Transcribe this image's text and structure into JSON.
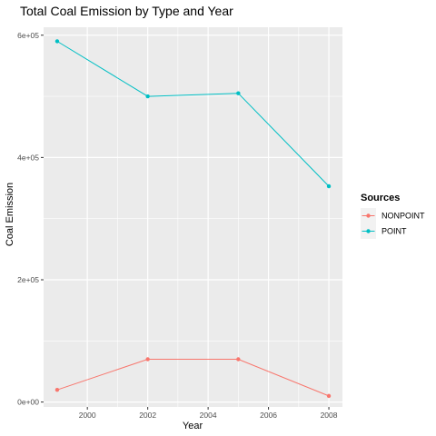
{
  "chart_data": {
    "type": "line",
    "title": "Total Coal Emission by Type and Year",
    "xlabel": "Year",
    "ylabel": "Coal Emission",
    "x": [
      1999,
      2002,
      2005,
      2008
    ],
    "xlim": [
      1998.55,
      2008.45
    ],
    "ylim": [
      -8000,
      613000
    ],
    "x_ticks": [
      2000,
      2002,
      2004,
      2006,
      2008
    ],
    "y_ticks": [
      0,
      200000,
      400000,
      600000
    ],
    "x_tick_labels": [
      "2000",
      "2002",
      "2004",
      "2006",
      "2008"
    ],
    "y_tick_labels": [
      "0e+00",
      "2e+05",
      "4e+05",
      "6e+05"
    ],
    "grid": true,
    "legend": {
      "title": "Sources",
      "position": "right"
    },
    "series": [
      {
        "name": "NONPOINT",
        "color": "#F8766D",
        "values": [
          20000,
          70000,
          70000,
          10000
        ]
      },
      {
        "name": "POINT",
        "color": "#00BFC4",
        "values": [
          590000,
          500000,
          505000,
          353000
        ]
      }
    ]
  }
}
